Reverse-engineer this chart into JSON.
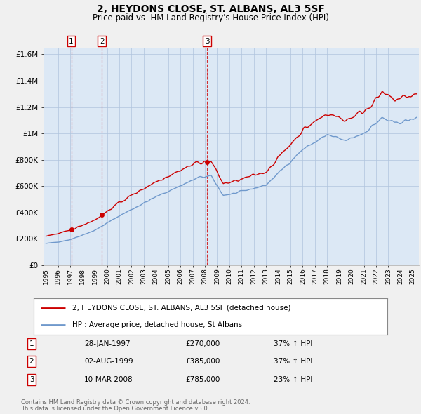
{
  "title": "2, HEYDONS CLOSE, ST. ALBANS, AL3 5SF",
  "subtitle": "Price paid vs. HM Land Registry's House Price Index (HPI)",
  "sale_label": "2, HEYDONS CLOSE, ST. ALBANS, AL3 5SF (detached house)",
  "hpi_label": "HPI: Average price, detached house, St Albans",
  "sale_color": "#cc0000",
  "hpi_color": "#7099cc",
  "background_color": "#f0f0f0",
  "plot_bg_color": "#dce8f5",
  "grid_color": "#b0c4de",
  "transactions": [
    {
      "num": 1,
      "date_label": "28-JAN-1997",
      "date_x": 1997.07,
      "price": 270000,
      "pct": "37%",
      "direction": "↑"
    },
    {
      "num": 2,
      "date_label": "02-AUG-1999",
      "date_x": 1999.58,
      "price": 385000,
      "pct": "37%",
      "direction": "↑"
    },
    {
      "num": 3,
      "date_label": "10-MAR-2008",
      "date_x": 2008.19,
      "price": 785000,
      "pct": "23%",
      "direction": "↑"
    }
  ],
  "ylim": [
    0,
    1650000
  ],
  "yticks": [
    0,
    200000,
    400000,
    600000,
    800000,
    1000000,
    1200000,
    1400000,
    1600000
  ],
  "ytick_labels": [
    "£0",
    "£200K",
    "£400K",
    "£600K",
    "£800K",
    "£1M",
    "£1.2M",
    "£1.4M",
    "£1.6M"
  ],
  "xlim": [
    1994.8,
    2025.5
  ],
  "footer_line1": "Contains HM Land Registry data © Crown copyright and database right 2024.",
  "footer_line2": "This data is licensed under the Open Government Licence v3.0."
}
